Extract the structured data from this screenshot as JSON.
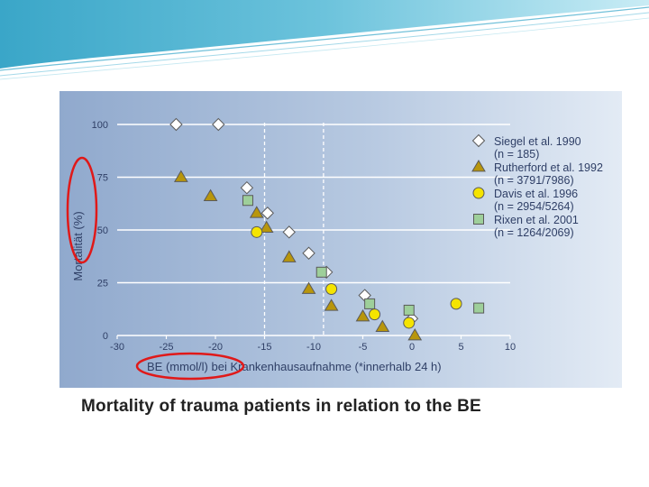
{
  "slide": {
    "caption": "Mortality of trauma patients in relation to the BE"
  },
  "chart_data": {
    "type": "scatter",
    "title": "",
    "xlabel": "BE (mmol/l) bei Krankenhausaufnahme (*innerhalb 24 h)",
    "ylabel": "Mortalität (%)",
    "xlim": [
      -30,
      10
    ],
    "ylim": [
      0,
      100
    ],
    "xticks": [
      -30,
      -25,
      -20,
      -15,
      -10,
      -5,
      0,
      5,
      10
    ],
    "yticks": [
      0,
      25,
      50,
      75,
      100
    ],
    "xtick_labels": [
      "-30",
      "-25",
      "-20",
      "-15",
      "-10",
      "-5",
      "0",
      "5",
      "10"
    ],
    "ytick_labels": [
      "0",
      "25",
      "50",
      "75",
      "100"
    ],
    "grid": "horizontal",
    "dashed_lines_x": [
      -15,
      -9
    ],
    "legend_position": "right",
    "series": [
      {
        "name": "Siegel et al. 1990",
        "legend_note": "(n = 185)",
        "marker": "diamond",
        "color": "#ffffff",
        "x": [
          -24,
          -19.7,
          -16.8,
          -14.7,
          -12.5,
          -10.5,
          -8.7,
          -4.8,
          0
        ],
        "y": [
          100,
          100,
          70,
          58,
          49,
          39,
          30,
          19,
          8
        ]
      },
      {
        "name": "Rutherford et al. 1992",
        "legend_note": "(n = 3791/7986)",
        "marker": "triangle",
        "color": "#b8960c",
        "x": [
          -23.5,
          -20.5,
          -15.8,
          -14.8,
          -12.5,
          -10.5,
          -8.2,
          -5,
          -3,
          0.3
        ],
        "y": [
          75,
          66,
          58,
          51,
          37,
          22,
          14,
          9,
          4,
          0
        ]
      },
      {
        "name": "Davis et al. 1996",
        "legend_note": "(n = 2954/5264)",
        "marker": "circle",
        "color": "#f5e400",
        "x": [
          -15.8,
          -8.2,
          -3.8,
          -0.3,
          4.5
        ],
        "y": [
          49,
          22,
          10,
          6,
          15
        ]
      },
      {
        "name": "Rixen et al. 2001",
        "legend_note": "(n = 1264/2069)",
        "marker": "square",
        "color": "#9ecf9a",
        "x": [
          -16.7,
          -9.2,
          -4.3,
          -0.3,
          6.8
        ],
        "y": [
          64,
          30,
          15,
          12,
          13
        ]
      }
    ]
  }
}
